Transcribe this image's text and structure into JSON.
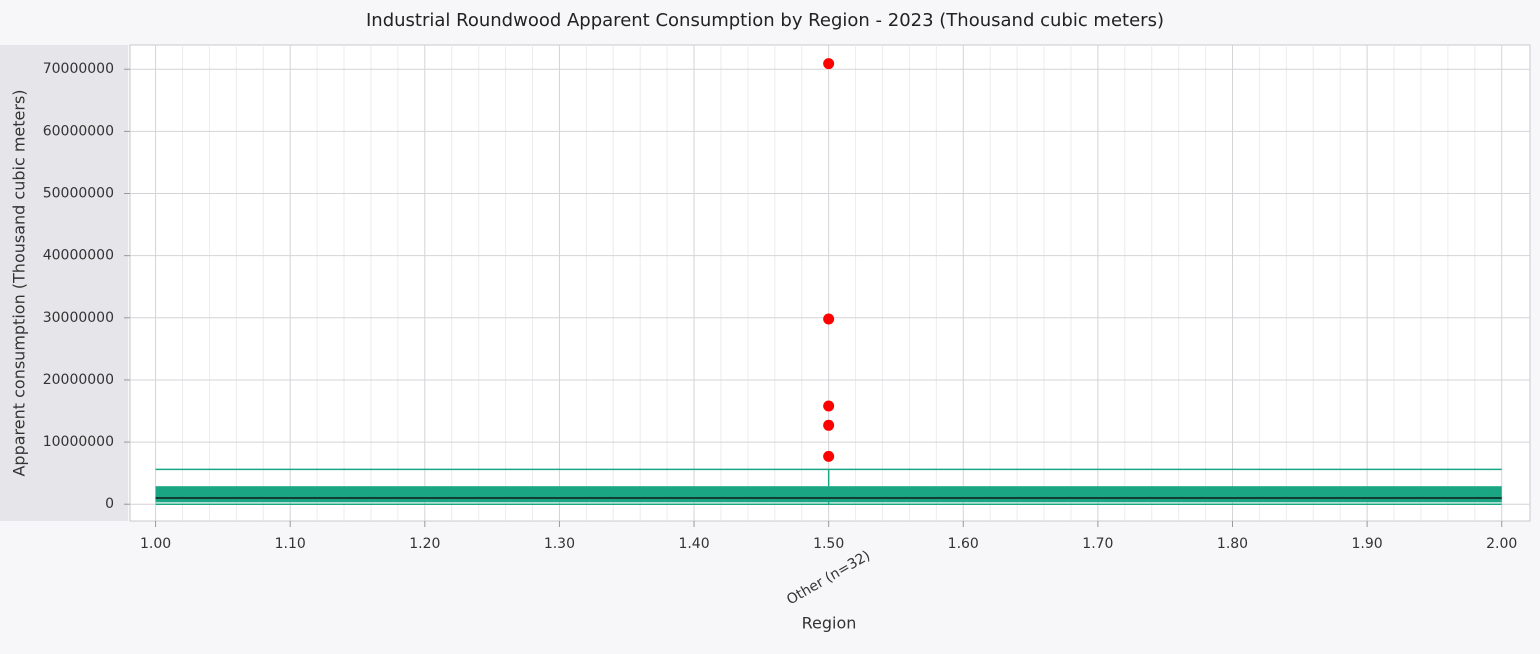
{
  "chart_data": {
    "type": "box",
    "title": "Industrial Roundwood Apparent Consumption by Region - 2023 (Thousand cubic meters)",
    "x_label": "Region",
    "y_label": "Apparent consumption (Thousand cubic meters)",
    "categories": [
      "Other (n=32)"
    ],
    "x": [
      1.5
    ],
    "whisker_low": [
      0
    ],
    "q1": [
      300000
    ],
    "median": [
      1000000
    ],
    "q3": [
      2900000
    ],
    "whisker_high": [
      5600000
    ],
    "outliers": [
      [
        70900000,
        29800000,
        15800000,
        12700000,
        7700000
      ]
    ],
    "color": "#1aa683",
    "median_color": "#123d33",
    "outlier_color": "#ff0000",
    "xlim": [
      0.981,
      2.021
    ],
    "xticks": [
      {
        "value": 1,
        "label": "1.00"
      },
      {
        "value": 1.1,
        "label": "1.10"
      },
      {
        "value": 1.2,
        "label": "1.20"
      },
      {
        "value": 1.3,
        "label": "1.30"
      },
      {
        "value": 1.4,
        "label": "1.40"
      },
      {
        "value": 1.5,
        "label": "1.50"
      },
      {
        "value": 1.6,
        "label": "1.60"
      },
      {
        "value": 1.7,
        "label": "1.70"
      },
      {
        "value": 1.8,
        "label": "1.80"
      },
      {
        "value": 1.9,
        "label": "1.90"
      },
      {
        "value": 2,
        "label": "2.00"
      }
    ],
    "ylim": [
      -2700000,
      73900000
    ],
    "yticks": [
      0,
      10000000,
      20000000,
      30000000,
      40000000,
      50000000,
      60000000,
      70000000
    ],
    "grid": true
  }
}
